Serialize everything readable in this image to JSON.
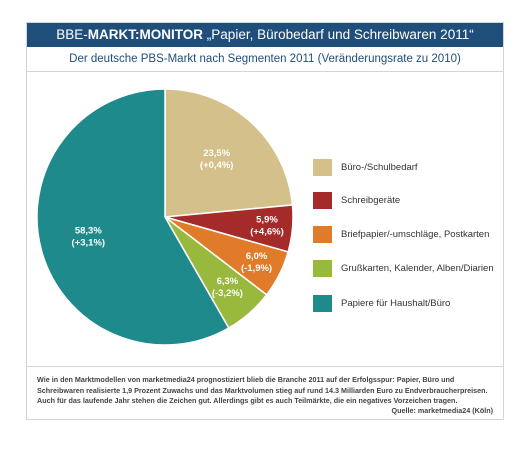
{
  "header": {
    "title_prefix": "BBE-",
    "title_brand": "MARKT:MONITOR",
    "title_rest": " „Papier, Bürobedarf und Schreibwaren 2011“",
    "subtitle": "Der deutsche PBS-Markt nach Segmenten 2011 (Veränderungsrate zu 2010)"
  },
  "chart_data": {
    "type": "pie",
    "title": "Der deutsche PBS-Markt nach Segmenten 2011 (Veränderungsrate zu 2010)",
    "unit": "%",
    "slices": [
      {
        "label": "Büro-/Schulbedarf",
        "value": 23.5,
        "value_text": "23,5%",
        "change_text": "(+0,4%)",
        "color": "#d4c08b"
      },
      {
        "label": "Schreibgeräte",
        "value": 5.9,
        "value_text": "5,9%",
        "change_text": "(+4,6%)",
        "color": "#a52a2a"
      },
      {
        "label": "Briefpapier/-umschläge, Postkarten",
        "value": 6.0,
        "value_text": "6,0%",
        "change_text": "(-1,9%)",
        "color": "#e07b2a"
      },
      {
        "label": "Grußkarten, Kalender, Alben/Diarien",
        "value": 6.3,
        "value_text": "6,3%",
        "change_text": "(-3,2%)",
        "color": "#98b83e"
      },
      {
        "label": "Papiere für Haushalt/Büro",
        "value": 58.3,
        "value_text": "58,3%",
        "change_text": "(+3,1%)",
        "color": "#1e8a8c"
      }
    ]
  },
  "footer": {
    "note": "Wie in den Marktmodellen von marketmedia24 prognostiziert blieb die Branche 2011 auf der Erfolgsspur: Papier, Büro und Schreibwaren realisierte 1,9 Prozent Zuwachs und das Marktvolumen stieg auf rund 14.3 Milliarden Euro zu Endverbraucherpreisen. Auch für das laufende Jahr stehen die Zeichen gut. Allerdings gibt es auch Teilmärkte, die ein negatives Vorzeichen tragen.",
    "source": "Quelle: marketmedia24 (Köln)"
  }
}
